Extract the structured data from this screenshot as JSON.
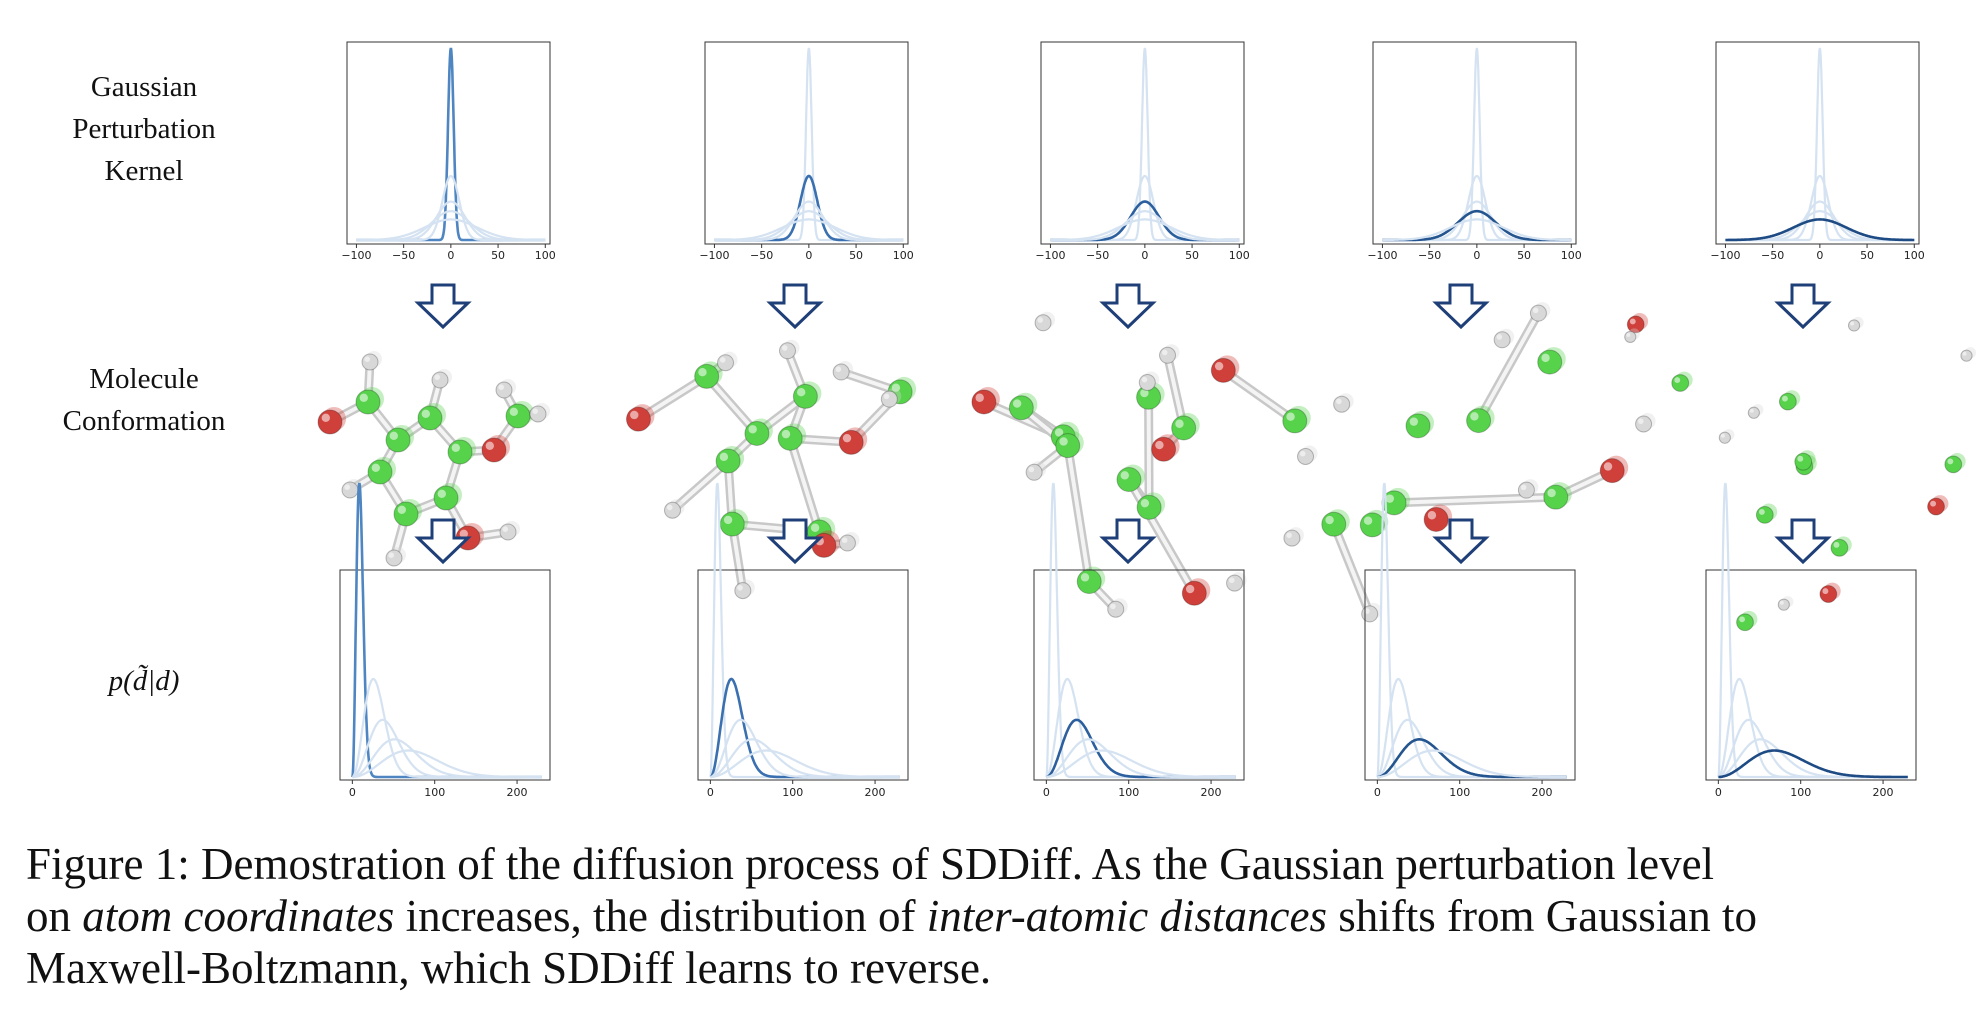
{
  "row_labels": {
    "kernel": [
      "Gaussian",
      "Perturbation",
      "Kernel"
    ],
    "molecule": [
      "Molecule",
      "Conformation"
    ],
    "distance": "p(d̃|d)"
  },
  "caption": {
    "prefix": "Figure 1:",
    "line1": "Demostration of the diffusion process of SDDiff.  As the Gaussian perturbation level",
    "line2_a": "on ",
    "line2_em1": "atom coordinates",
    "line2_b": " increases, the distribution of ",
    "line2_em2": "inter-atomic distances",
    "line2_c": " shifts from Gaussian to",
    "line3": "Maxwell-Boltzmann, which SDDiff learns to reverse."
  },
  "colors": {
    "active_curves": [
      "#4f86c2",
      "#3a70b0",
      "#2c5f9e",
      "#25558f",
      "#1e4b84"
    ],
    "faded_curve": "#d4e2f1",
    "arrow": "#1f3f78",
    "atom_carbon": "#56d24b",
    "atom_oxygen": "#d0403a",
    "atom_hydrogen": "#d8d8d8"
  },
  "chart_data": [
    {
      "type": "line",
      "panel": "gaussian-kernel",
      "x_ticks": [
        -100,
        -50,
        0,
        50,
        100
      ],
      "series": [
        {
          "sigma": 3,
          "active_step": 1
        },
        {
          "sigma": 9,
          "active_step": 2
        },
        {
          "sigma": 15,
          "active_step": 3
        },
        {
          "sigma": 20,
          "active_step": 4
        },
        {
          "sigma": 28,
          "active_step": 5
        }
      ]
    },
    {
      "type": "line",
      "panel": "distance-distribution",
      "x_ticks": [
        0,
        100,
        200
      ],
      "series": [
        {
          "mode": 5,
          "width": 6,
          "active_step": 1
        },
        {
          "mode": 15,
          "width": 18,
          "active_step": 2
        },
        {
          "mode": 25,
          "width": 26,
          "active_step": 3
        },
        {
          "mode": 38,
          "width": 36,
          "active_step": 4
        },
        {
          "mode": 55,
          "width": 48,
          "active_step": 5
        }
      ]
    }
  ]
}
